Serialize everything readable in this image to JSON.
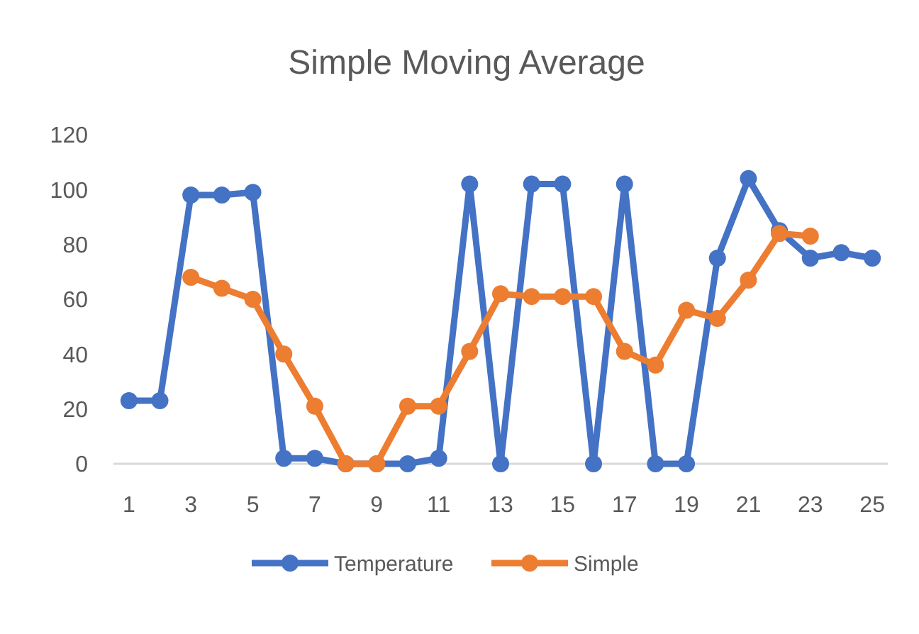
{
  "chart_data": {
    "type": "line",
    "title": "Simple Moving Average",
    "x": [
      1,
      2,
      3,
      4,
      5,
      6,
      7,
      8,
      9,
      10,
      11,
      12,
      13,
      14,
      15,
      16,
      17,
      18,
      19,
      20,
      21,
      22,
      23,
      24,
      25
    ],
    "xlim": [
      0.5,
      25.5
    ],
    "xticks": [
      1,
      3,
      5,
      7,
      9,
      11,
      13,
      15,
      17,
      19,
      21,
      23,
      25
    ],
    "series": [
      {
        "name": "Temperature",
        "color": "#4472c4",
        "values": [
          23,
          23,
          98,
          98,
          99,
          2,
          2,
          0,
          0,
          0,
          2,
          102,
          0,
          102,
          102,
          0,
          102,
          0,
          0,
          75,
          104,
          85,
          75,
          77,
          75
        ]
      },
      {
        "name": "Simple",
        "color": "#ed7d31",
        "values": [
          null,
          null,
          68,
          64,
          60,
          40,
          21,
          0,
          0,
          21,
          21,
          41,
          62,
          61,
          61,
          61,
          41,
          36,
          56,
          53,
          67,
          84,
          83,
          null,
          null
        ]
      }
    ],
    "ylim": [
      0,
      120
    ],
    "yticks": [
      0,
      20,
      40,
      60,
      80,
      100,
      120
    ],
    "grid": false,
    "legend": "bottom",
    "marker": "circle",
    "line_style": "solid"
  }
}
